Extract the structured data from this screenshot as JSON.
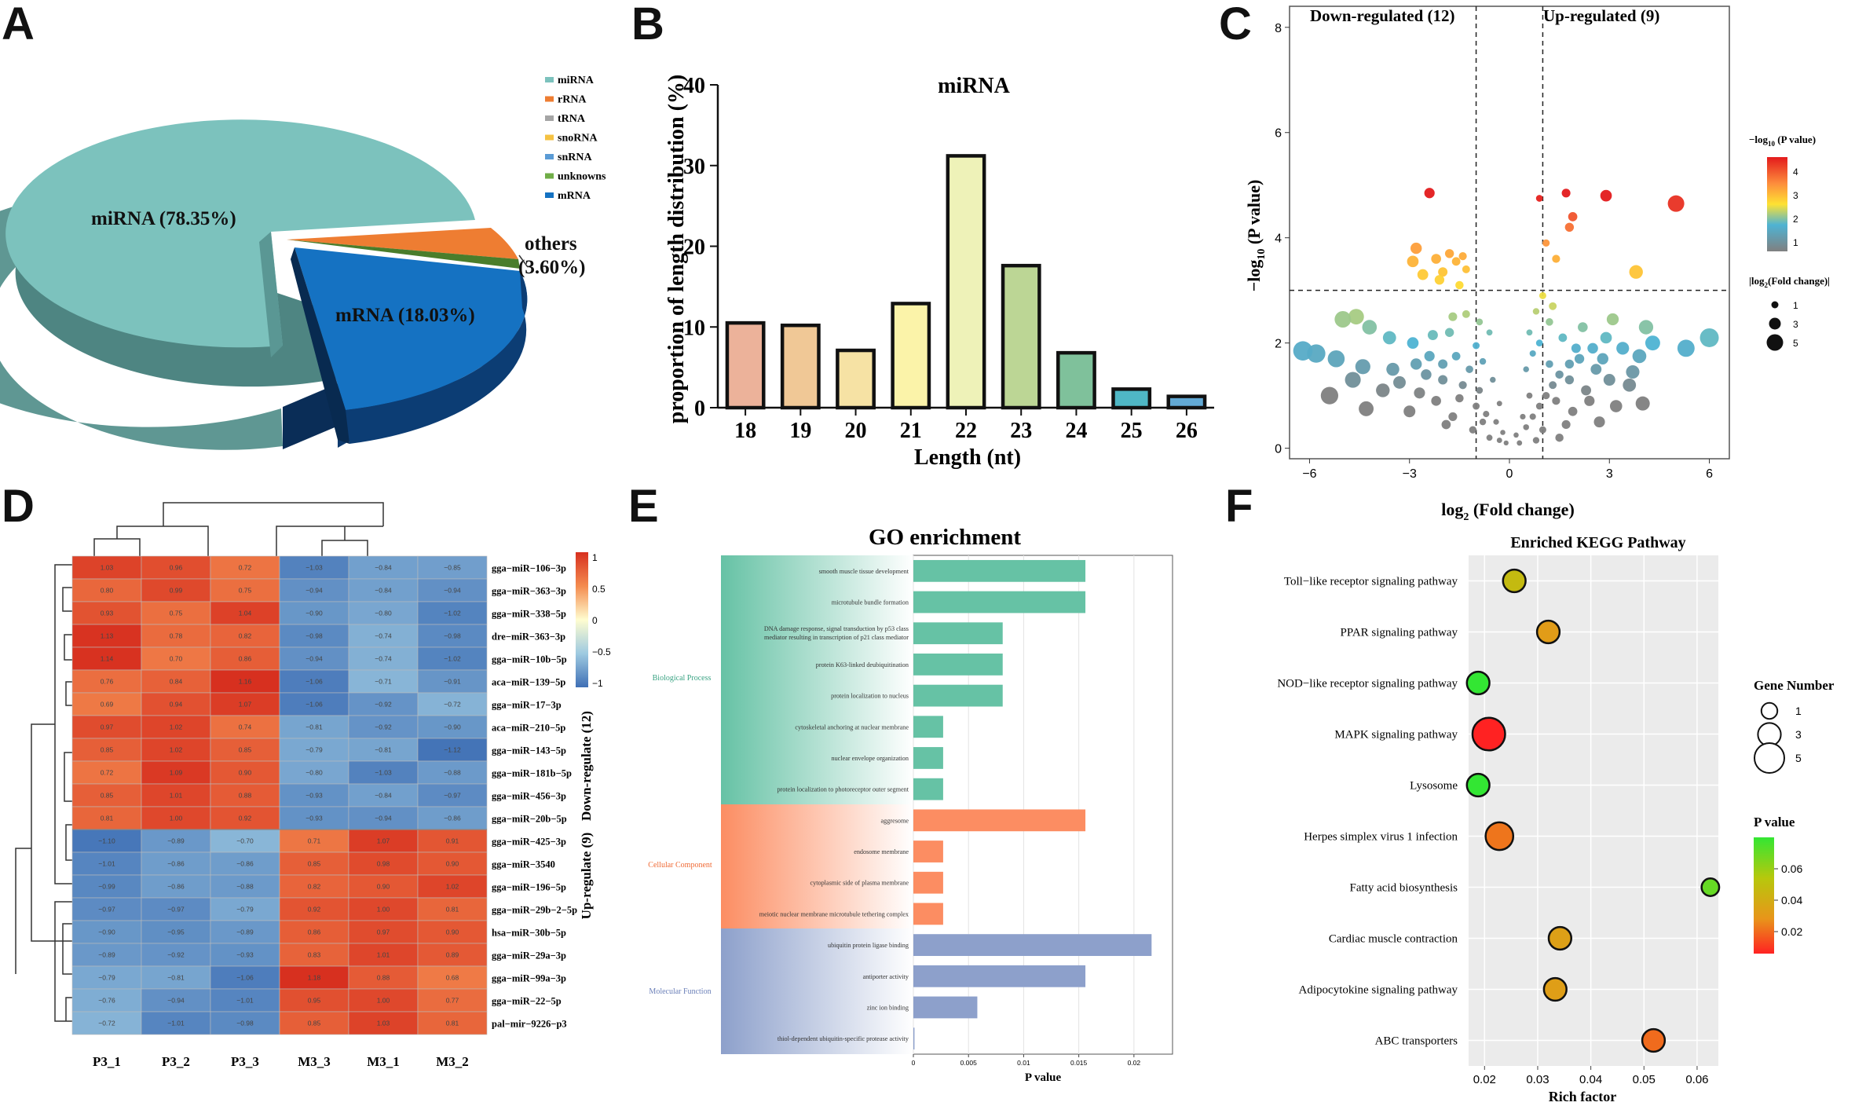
{
  "panel_letters": [
    "A",
    "B",
    "C",
    "D",
    "E",
    "F"
  ],
  "chart_data": [
    {
      "panel": "A",
      "type": "pie",
      "slices": [
        {
          "label": "miRNA",
          "pct": 78.35,
          "color": "#7cc2bd"
        },
        {
          "label": "mRNA",
          "pct": 18.03,
          "color": "#1572c2"
        },
        {
          "label": "others",
          "pct": 3.6,
          "color": "#ee7d32"
        }
      ],
      "slice_labels": [
        "miRNA (78.35%)",
        "mRNA (18.03%)",
        "others",
        "(3.60%)"
      ],
      "legend": [
        {
          "label": "miRNA",
          "color": "#7cc2bd"
        },
        {
          "label": "rRNA",
          "color": "#ee7d32"
        },
        {
          "label": "tRNA",
          "color": "#a5a5a5"
        },
        {
          "label": "snoRNA",
          "color": "#f5c242"
        },
        {
          "label": "snRNA",
          "color": "#5a9bd5"
        },
        {
          "label": "unknowns",
          "color": "#70ad47"
        },
        {
          "label": "mRNA",
          "color": "#1572c2"
        }
      ]
    },
    {
      "panel": "B",
      "type": "bar",
      "title": "miRNA",
      "xlabel": "Length (nt)",
      "ylabel": "proportion of length distribution (%)",
      "categories": [
        "18",
        "19",
        "20",
        "21",
        "22",
        "23",
        "24",
        "25",
        "26"
      ],
      "values": [
        10.5,
        10.2,
        7.1,
        12.9,
        31.2,
        17.6,
        6.8,
        2.3,
        1.4
      ],
      "colors": [
        "#ecb29a",
        "#f0c896",
        "#f6e2a4",
        "#fbf3a9",
        "#eef2b8",
        "#bcd695",
        "#7fc19b",
        "#4fb7c5",
        "#62a9d5"
      ],
      "ylim": [
        0,
        40
      ],
      "yticks": [
        "0",
        "10",
        "20",
        "30",
        "40"
      ]
    },
    {
      "panel": "C",
      "type": "scatter",
      "xlabel": "log2 (Fold change)",
      "ylabel": "-log10 (P value)",
      "xlim": [
        -6.6,
        6.6
      ],
      "ylim": [
        -0.2,
        8.4
      ],
      "xticks": [
        "-6",
        "-3",
        "0",
        "3",
        "6"
      ],
      "yticks": [
        "0",
        "2",
        "4",
        "6",
        "8"
      ],
      "annot_left": "Down-regulated (12)",
      "annot_right": "Up-regulated (9)",
      "fc_threshold": 1,
      "p_threshold": 3,
      "colorbar_title": "-log10 (P value)",
      "colorbar_ticks": [
        "1",
        "2",
        "3",
        "4"
      ],
      "size_legend_title": "|log2(Fold change)|",
      "size_legend": [
        "1",
        "3",
        "5"
      ],
      "points": [
        [
          -2.4,
          4.85
        ],
        [
          -2.2,
          3.6
        ],
        [
          -2.8,
          3.8
        ],
        [
          -2.9,
          3.55
        ],
        [
          -2.0,
          3.35
        ],
        [
          -1.8,
          3.7
        ],
        [
          -1.6,
          3.55
        ],
        [
          -1.5,
          3.1
        ],
        [
          -1.4,
          3.65
        ],
        [
          -2.6,
          3.3
        ],
        [
          -2.1,
          3.2
        ],
        [
          -1.3,
          3.4
        ],
        [
          0.9,
          4.75
        ],
        [
          1.7,
          4.85
        ],
        [
          2.9,
          4.8
        ],
        [
          5.0,
          4.65
        ],
        [
          1.9,
          4.4
        ],
        [
          1.8,
          4.2
        ],
        [
          1.1,
          3.9
        ],
        [
          3.8,
          3.35
        ],
        [
          1.4,
          3.6
        ],
        [
          -4.6,
          2.5
        ],
        [
          -5.0,
          2.45
        ],
        [
          -4.2,
          2.3
        ],
        [
          -3.6,
          2.1
        ],
        [
          -2.9,
          2.0
        ],
        [
          -2.3,
          2.15
        ],
        [
          -1.7,
          2.5
        ],
        [
          -1.3,
          2.55
        ],
        [
          -0.9,
          2.4
        ],
        [
          -0.6,
          2.2
        ],
        [
          -5.8,
          1.8
        ],
        [
          -5.2,
          1.7
        ],
        [
          -4.4,
          1.55
        ],
        [
          -6.2,
          1.85
        ],
        [
          -4.7,
          1.3
        ],
        [
          -3.3,
          1.25
        ],
        [
          -2.5,
          1.4
        ],
        [
          -2.0,
          1.6
        ],
        [
          -1.6,
          1.75
        ],
        [
          -1.2,
          1.5
        ],
        [
          -0.8,
          1.65
        ],
        [
          -0.5,
          1.3
        ],
        [
          -4.3,
          0.75
        ],
        [
          -5.4,
          1.0
        ],
        [
          -3.8,
          1.1
        ],
        [
          -2.7,
          1.05
        ],
        [
          -2.2,
          0.9
        ],
        [
          -1.5,
          0.95
        ],
        [
          -1.0,
          0.8
        ],
        [
          -0.7,
          0.65
        ],
        [
          -0.4,
          0.5
        ],
        [
          -0.2,
          0.3
        ],
        [
          -3.0,
          0.7
        ],
        [
          -1.9,
          0.45
        ],
        [
          -1.1,
          0.35
        ],
        [
          -0.6,
          0.2
        ],
        [
          -0.1,
          0.1
        ],
        [
          -1.4,
          1.2
        ],
        [
          -0.9,
          1.1
        ],
        [
          -2.8,
          1.6
        ],
        [
          -2.4,
          1.75
        ],
        [
          -1.8,
          2.2
        ],
        [
          -1.0,
          1.95
        ],
        [
          -0.3,
          0.85
        ],
        [
          -3.5,
          1.5
        ],
        [
          -2.0,
          1.3
        ],
        [
          -1.7,
          0.6
        ],
        [
          -0.8,
          0.5
        ],
        [
          -0.3,
          0.15
        ],
        [
          0.3,
          0.1
        ],
        [
          0.2,
          0.25
        ],
        [
          0.5,
          0.4
        ],
        [
          0.7,
          0.6
        ],
        [
          0.9,
          0.8
        ],
        [
          1.1,
          1.0
        ],
        [
          1.3,
          1.2
        ],
        [
          1.5,
          1.4
        ],
        [
          1.8,
          1.6
        ],
        [
          2.1,
          1.7
        ],
        [
          2.5,
          1.9
        ],
        [
          2.9,
          2.1
        ],
        [
          3.4,
          1.9
        ],
        [
          3.9,
          1.75
        ],
        [
          4.3,
          2.0
        ],
        [
          5.3,
          1.9
        ],
        [
          6.0,
          2.1
        ],
        [
          4.1,
          2.3
        ],
        [
          3.1,
          2.45
        ],
        [
          2.2,
          2.3
        ],
        [
          1.6,
          2.1
        ],
        [
          1.2,
          2.4
        ],
        [
          0.8,
          2.6
        ],
        [
          0.6,
          2.2
        ],
        [
          1.0,
          2.9
        ],
        [
          0.7,
          1.8
        ],
        [
          1.4,
          0.9
        ],
        [
          1.9,
          0.7
        ],
        [
          2.4,
          0.9
        ],
        [
          3.0,
          1.3
        ],
        [
          3.6,
          1.2
        ],
        [
          4.0,
          0.85
        ],
        [
          2.7,
          0.5
        ],
        [
          1.7,
          0.45
        ],
        [
          1.0,
          0.35
        ],
        [
          0.4,
          0.6
        ],
        [
          0.6,
          1.0
        ],
        [
          1.2,
          1.6
        ],
        [
          2.0,
          1.9
        ],
        [
          2.6,
          1.5
        ],
        [
          3.2,
          0.8
        ],
        [
          1.5,
          0.2
        ],
        [
          0.8,
          0.15
        ],
        [
          2.3,
          1.1
        ],
        [
          1.8,
          1.3
        ],
        [
          0.5,
          1.5
        ],
        [
          2.8,
          1.7
        ],
        [
          3.7,
          1.45
        ],
        [
          0.9,
          2.0
        ],
        [
          1.3,
          2.7
        ]
      ]
    },
    {
      "panel": "D",
      "type": "heatmap",
      "columns": [
        "P3_1",
        "P3_2",
        "P3_3",
        "M3_3",
        "M3_1",
        "M3_2"
      ],
      "rows": [
        "gga−miR−106−3p",
        "gga−miR−363−3p",
        "gga−miR−338−5p",
        "dre−miR−363−3p",
        "gga−miR−10b−5p",
        "aca−miR−139−5p",
        "gga−miR−17−3p",
        "aca−miR−210−5p",
        "gga−miR−143−5p",
        "gga−miR−181b−5p",
        "gga−miR−456−3p",
        "gga−miR−20b−5p",
        "gga−miR−425−3p",
        "gga−miR−3540",
        "gga−miR−196−5p",
        "gga−miR−29b−2−5p",
        "hsa−miR−30b−5p",
        "gga−miR−29a−3p",
        "gga−miR−99a−3p",
        "gga−miR−22−5p",
        "pal−mir−9226−p3"
      ],
      "values": [
        [
          1.03,
          0.96,
          0.72,
          -1.03,
          -0.84,
          -0.85
        ],
        [
          0.8,
          0.99,
          0.75,
          -0.94,
          -0.84,
          -0.94
        ],
        [
          0.93,
          0.75,
          1.04,
          -0.9,
          -0.8,
          -1.02
        ],
        [
          1.13,
          0.78,
          0.82,
          -0.98,
          -0.74,
          -0.98
        ],
        [
          1.14,
          0.7,
          0.86,
          -0.94,
          -0.74,
          -1.02
        ],
        [
          0.76,
          0.84,
          1.16,
          -1.06,
          -0.71,
          -0.91
        ],
        [
          0.69,
          0.94,
          1.07,
          -1.06,
          -0.92,
          -0.72
        ],
        [
          0.97,
          1.02,
          0.74,
          -0.81,
          -0.92,
          -0.9
        ],
        [
          0.85,
          1.02,
          0.85,
          -0.79,
          -0.81,
          -1.12
        ],
        [
          0.72,
          1.09,
          0.9,
          -0.8,
          -1.03,
          -0.88
        ],
        [
          0.85,
          1.01,
          0.88,
          -0.93,
          -0.84,
          -0.97
        ],
        [
          0.81,
          1.0,
          0.92,
          -0.93,
          -0.94,
          -0.86
        ],
        [
          -1.1,
          -0.89,
          -0.7,
          0.71,
          1.07,
          0.91
        ],
        [
          -1.01,
          -0.86,
          -0.86,
          0.85,
          0.98,
          0.9
        ],
        [
          -0.99,
          -0.86,
          -0.88,
          0.82,
          0.9,
          1.02
        ],
        [
          -0.97,
          -0.97,
          -0.79,
          0.92,
          1.0,
          0.81
        ],
        [
          -0.9,
          -0.95,
          -0.89,
          0.86,
          0.97,
          0.9
        ],
        [
          -0.89,
          -0.92,
          -0.93,
          0.83,
          1.01,
          0.89
        ],
        [
          -0.79,
          -0.81,
          -1.06,
          1.18,
          0.88,
          0.68
        ],
        [
          -0.76,
          -0.94,
          -1.01,
          0.95,
          1.0,
          0.77
        ],
        [
          -0.72,
          -1.01,
          -0.98,
          0.85,
          1.03,
          0.81
        ]
      ],
      "groups": [
        "Down-regulate (12)",
        "Up-regulate (9)"
      ],
      "colorbar_ticks": [
        "1",
        "0.5",
        "0",
        "-0.5",
        "-1"
      ]
    },
    {
      "panel": "E",
      "type": "bar",
      "orientation": "horizontal",
      "title": "GO enrichment",
      "xlabel": "P value",
      "xlim": [
        0,
        0.0235
      ],
      "xticks": [
        "0",
        "0.005",
        "0.01",
        "0.015",
        "0.02"
      ],
      "categories_groups": [
        "Biological Process",
        "Cellular Component",
        "Molecular Function"
      ],
      "group_colors": [
        "#66c2a5",
        "#fc8d62",
        "#8da0cb"
      ],
      "terms": [
        {
          "label": "smooth muscle tissue development",
          "value": 0.0156,
          "group": 0
        },
        {
          "label": "microtubule bundle formation",
          "value": 0.0156,
          "group": 0
        },
        {
          "label": "DNA damage response, signal transduction by p53 class",
          "label2": "mediator resulting in transcription of p21 class mediator",
          "value": 0.0081,
          "group": 0
        },
        {
          "label": "protein K63-linked deubiquitination",
          "value": 0.0081,
          "group": 0
        },
        {
          "label": "protein localization to nucleus",
          "value": 0.0081,
          "group": 0
        },
        {
          "label": "cytoskeletal anchoring at nuclear membrane",
          "value": 0.0027,
          "group": 0
        },
        {
          "label": "nuclear envelope organization",
          "value": 0.0027,
          "group": 0
        },
        {
          "label": "protein localization to photoreceptor outer segment",
          "value": 0.0027,
          "group": 0
        },
        {
          "label": "aggresome",
          "value": 0.0156,
          "group": 1
        },
        {
          "label": "endosome membrane",
          "value": 0.0027,
          "group": 1
        },
        {
          "label": "cytoplasmic side of plasma membrane",
          "value": 0.0027,
          "group": 1
        },
        {
          "label": "meiotic nuclear membrane microtubule tethering complex",
          "value": 0.0027,
          "group": 1
        },
        {
          "label": "ubiquitin protein ligase binding",
          "value": 0.0216,
          "group": 2
        },
        {
          "label": "antiporter activity",
          "value": 0.0156,
          "group": 2
        },
        {
          "label": "zinc ion binding",
          "value": 0.0058,
          "group": 2
        },
        {
          "label": "thiol-dependent ubiquitin-specific protease activity",
          "value": 0.0001,
          "group": 2
        }
      ]
    },
    {
      "panel": "F",
      "type": "scatter",
      "title": "Enriched KEGG Pathway",
      "xlabel": "Rich factor",
      "xlim": [
        0.017,
        0.064
      ],
      "xticks": [
        "0.02",
        "0.03",
        "0.04",
        "0.05",
        "0.06"
      ],
      "pathways": [
        {
          "label": "Toll−like receptor signaling pathway",
          "x": 0.0256,
          "p": 0.045,
          "genes": 2
        },
        {
          "label": "PPAR signaling pathway",
          "x": 0.032,
          "p": 0.03,
          "genes": 2
        },
        {
          "label": "NOD−like receptor signaling pathway",
          "x": 0.0188,
          "p": 0.078,
          "genes": 2
        },
        {
          "label": "MAPK signaling pathway",
          "x": 0.0208,
          "p": 0.004,
          "genes": 4
        },
        {
          "label": "Lysosome",
          "x": 0.0188,
          "p": 0.078,
          "genes": 2
        },
        {
          "label": "Herpes simplex virus 1 infection",
          "x": 0.0228,
          "p": 0.02,
          "genes": 3
        },
        {
          "label": "Fatty acid biosynthesis",
          "x": 0.0625,
          "p": 0.068,
          "genes": 1
        },
        {
          "label": "Cardiac muscle contraction",
          "x": 0.0342,
          "p": 0.032,
          "genes": 2
        },
        {
          "label": "Adipocytokine signaling pathway",
          "x": 0.0333,
          "p": 0.031,
          "genes": 2
        },
        {
          "label": "ABC transporters",
          "x": 0.0518,
          "p": 0.018,
          "genes": 2
        }
      ],
      "size_legend_title": "Gene Number",
      "size_legend": [
        "1",
        "3",
        "5"
      ],
      "color_legend_title": "P value",
      "color_legend_ticks": [
        "0.06",
        "0.04",
        "0.02"
      ]
    }
  ]
}
